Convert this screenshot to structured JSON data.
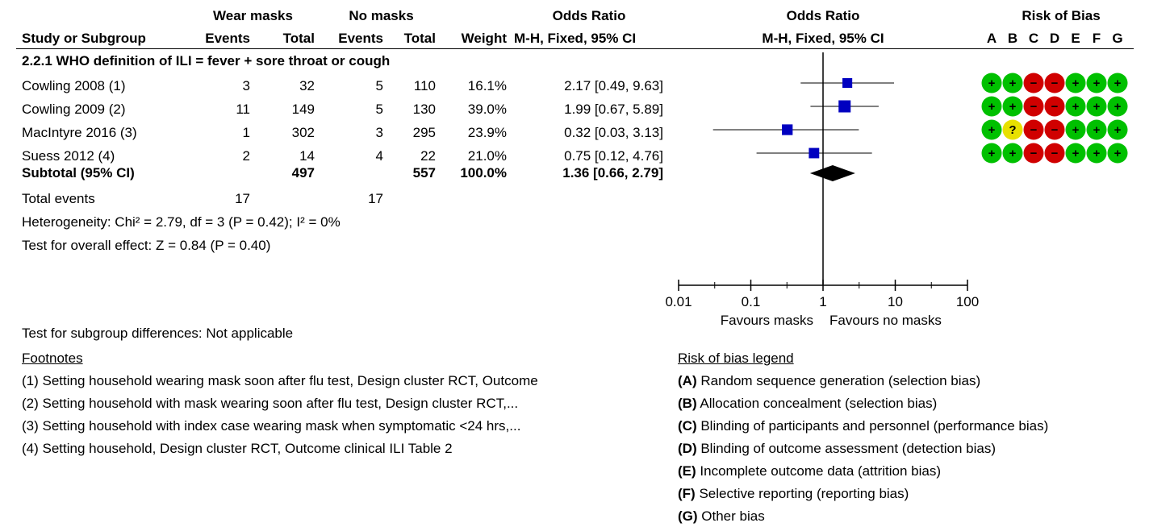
{
  "headers": {
    "group1": "Wear masks",
    "group2": "No masks",
    "or_top": "Odds Ratio",
    "study_col": "Study or Subgroup",
    "events1": "Events",
    "total1": "Total",
    "events2": "Events",
    "total2": "Total",
    "weight": "Weight",
    "or_method": "M-H, Fixed, 95% CI",
    "plot_top": "Odds Ratio",
    "plot_method": "M-H, Fixed, 95% CI",
    "rob_title": "Risk of Bias",
    "rob_letters": [
      "A",
      "B",
      "C",
      "D",
      "E",
      "F",
      "G"
    ]
  },
  "subgroup_title": "2.2.1 WHO definition of ILI = fever + sore throat or cough",
  "studies": [
    {
      "name": "Cowling 2008 (1)",
      "e1": "3",
      "t1": "32",
      "e2": "5",
      "t2": "110",
      "weight": "16.1%",
      "ci": "2.17 [0.49, 9.63]"
    },
    {
      "name": "Cowling 2009 (2)",
      "e1": "11",
      "t1": "149",
      "e2": "5",
      "t2": "130",
      "weight": "39.0%",
      "ci": "1.99 [0.67, 5.89]"
    },
    {
      "name": "MacIntyre 2016 (3)",
      "e1": "1",
      "t1": "302",
      "e2": "3",
      "t2": "295",
      "weight": "23.9%",
      "ci": "0.32 [0.03, 3.13]"
    },
    {
      "name": "Suess 2012 (4)",
      "e1": "2",
      "t1": "14",
      "e2": "4",
      "t2": "22",
      "weight": "21.0%",
      "ci": "0.75 [0.12, 4.76]"
    }
  ],
  "subtotal": {
    "name": "Subtotal (95% CI)",
    "t1": "497",
    "t2": "557",
    "weight": "100.0%",
    "ci": "1.36 [0.66, 2.79]"
  },
  "total_events": {
    "label": "Total events",
    "e1": "17",
    "e2": "17"
  },
  "heterogeneity": "Heterogeneity: Chi² = 2.79, df = 3 (P = 0.42); I² = 0%",
  "overall_effect": "Test for overall effect: Z = 0.84 (P = 0.40)",
  "subgroup_diff": "Test for subgroup differences: Not applicable",
  "footnotes_title": "Footnotes",
  "footnotes": [
    "(1) Setting household wearing mask soon after flu test, Design cluster RCT, Outcome",
    "(2) Setting household with mask wearing soon after flu test, Design cluster RCT,...",
    "(3) Setting household with index case wearing mask when symptomatic <24 hrs,...",
    "(4) Setting household, Design cluster RCT, Outcome clinical ILI Table 2"
  ],
  "rob_legend_title": "Risk of bias legend",
  "rob_legend": [
    {
      "letter": "(A)",
      "text": " Random sequence generation (selection bias)"
    },
    {
      "letter": "(B)",
      "text": " Allocation concealment (selection bias)"
    },
    {
      "letter": "(C)",
      "text": " Blinding of participants and personnel (performance bias)"
    },
    {
      "letter": "(D)",
      "text": " Blinding of outcome assessment (detection bias)"
    },
    {
      "letter": "(E)",
      "text": " Incomplete outcome data (attrition bias)"
    },
    {
      "letter": "(F)",
      "text": " Selective reporting (reporting bias)"
    },
    {
      "letter": "(G)",
      "text": " Other bias"
    }
  ],
  "rob": [
    [
      "+",
      "+",
      "-",
      "-",
      "+",
      "+",
      "+"
    ],
    [
      "+",
      "+",
      "-",
      "-",
      "+",
      "+",
      "+"
    ],
    [
      "+",
      "?",
      "-",
      "-",
      "+",
      "+",
      "+"
    ],
    [
      "+",
      "+",
      "-",
      "-",
      "+",
      "+",
      "+"
    ]
  ],
  "rob_colors": {
    "+": "#00c000",
    "-": "#d00000",
    "?": "#e8e000"
  },
  "colors": {
    "point": "#0000c0",
    "diamond": "#000000"
  },
  "axis": {
    "ticks": [
      "0.01",
      "0.1",
      "1",
      "10",
      "100"
    ],
    "favours_left": "Favours masks",
    "favours_right": "Favours no masks"
  },
  "chart_data": {
    "type": "forest",
    "scale": "log",
    "xlim": [
      0.01,
      100
    ],
    "ticks": [
      0.01,
      0.1,
      1,
      10,
      100
    ],
    "points": [
      {
        "study": "Cowling 2008 (1)",
        "or": 2.17,
        "lo": 0.49,
        "hi": 9.63,
        "weight": 16.1
      },
      {
        "study": "Cowling 2009 (2)",
        "or": 1.99,
        "lo": 0.67,
        "hi": 5.89,
        "weight": 39.0
      },
      {
        "study": "MacIntyre 2016 (3)",
        "or": 0.32,
        "lo": 0.03,
        "hi": 3.13,
        "weight": 23.9
      },
      {
        "study": "Suess 2012 (4)",
        "or": 0.75,
        "lo": 0.12,
        "hi": 4.76,
        "weight": 21.0
      }
    ],
    "summary": {
      "or": 1.36,
      "lo": 0.66,
      "hi": 2.79
    }
  }
}
